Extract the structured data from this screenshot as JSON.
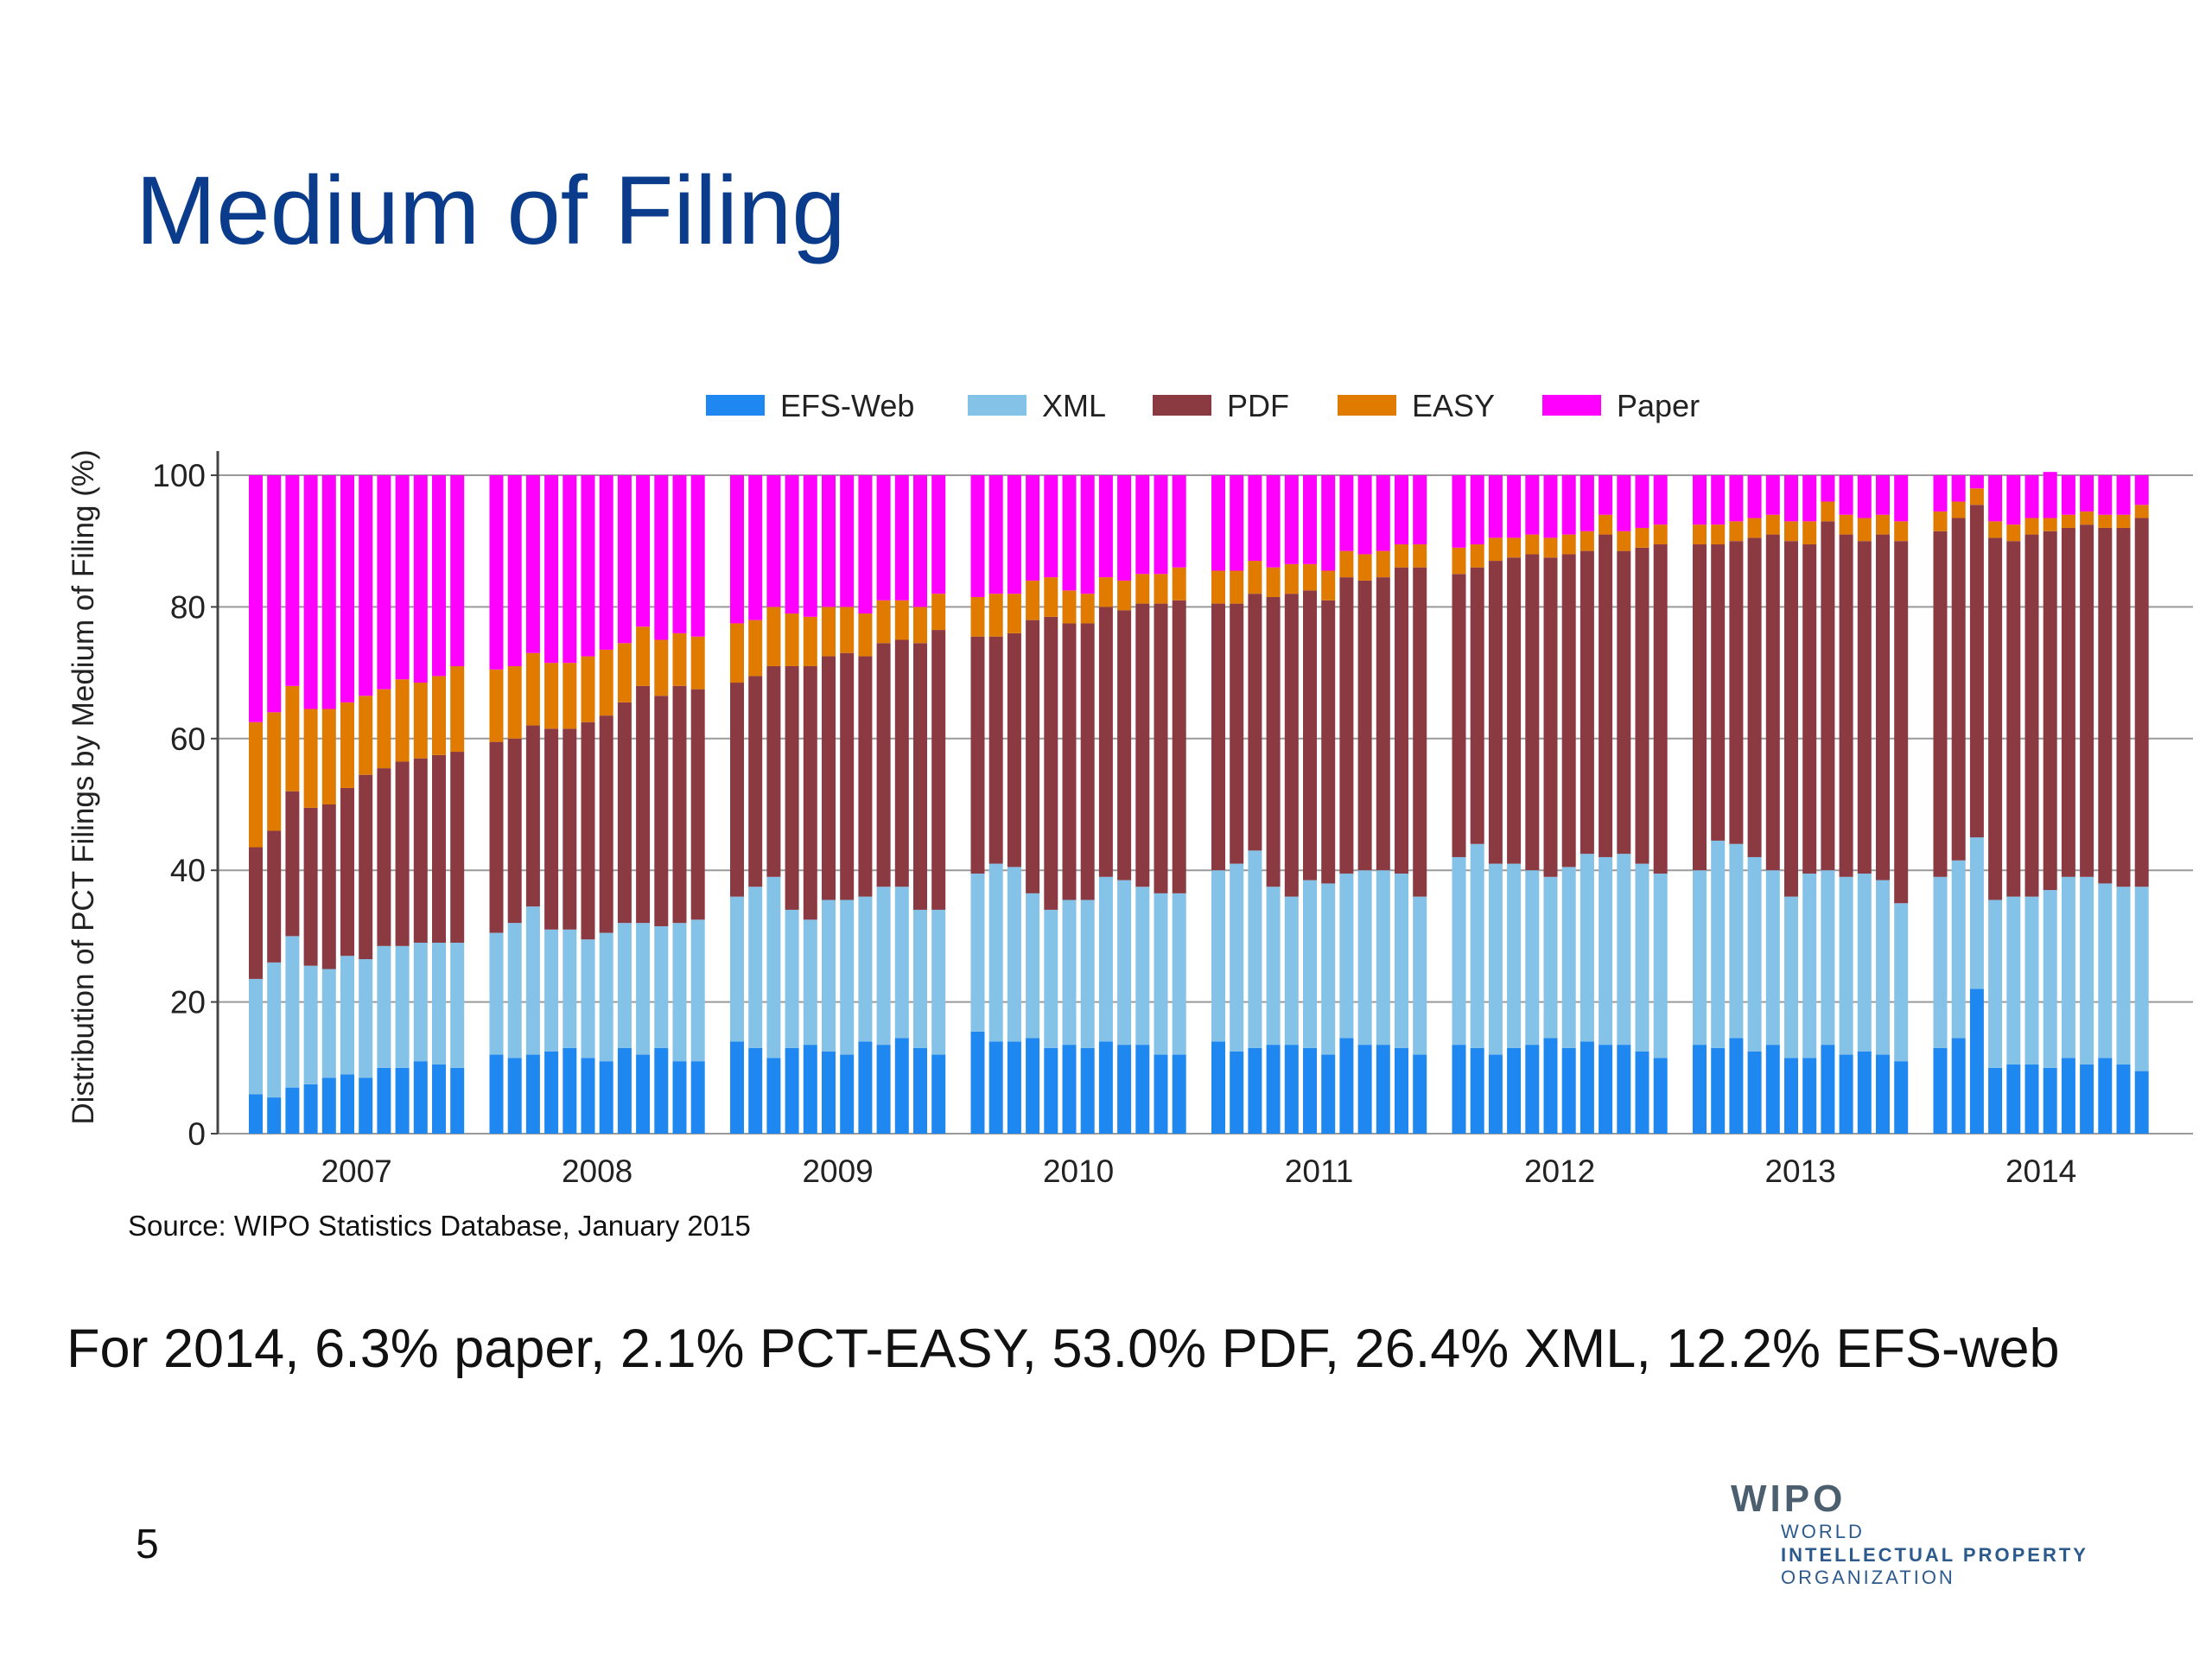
{
  "slide": {
    "title": "Medium of Filing",
    "source": "Source:  WIPO Statistics Database, January 2015",
    "summary": "For 2014, 6.3% paper, 2.1% PCT-EASY, 53.0% PDF, 26.4% XML, 12.2% EFS-web",
    "page_number": "5",
    "logo": {
      "mark": "WIPO",
      "line1": "WORLD",
      "line2": "INTELLECTUAL PROPERTY",
      "line3": "ORGANIZATION"
    }
  },
  "chart_data": {
    "type": "bar",
    "stacked": true,
    "ylabel": "Distribution of PCT Filings by Medium of Filing (%)",
    "xlabel": "",
    "ylim": [
      0,
      100
    ],
    "yticks": [
      0,
      20,
      40,
      60,
      80,
      100
    ],
    "grid": true,
    "legend_position": "top",
    "groups": [
      "2007",
      "2008",
      "2009",
      "2010",
      "2011",
      "2012",
      "2013",
      "2014"
    ],
    "bars_per_group": 12,
    "x_unit": "month",
    "series": [
      {
        "name": "EFS-Web",
        "color": "#1e88f0",
        "values": [
          6,
          5.5,
          7,
          7.5,
          8.5,
          9,
          8.5,
          10,
          10,
          11,
          10.5,
          10,
          12,
          11.5,
          12,
          12.5,
          13,
          11.5,
          11,
          13,
          12,
          13,
          11,
          11,
          14,
          13,
          11.5,
          13,
          13.5,
          12.5,
          12,
          14,
          13.5,
          14.5,
          13,
          12,
          15.5,
          14,
          14,
          14.5,
          13,
          13.5,
          13,
          14,
          13.5,
          13.5,
          12,
          12,
          14,
          12.5,
          13,
          13.5,
          13.5,
          13,
          12,
          14.5,
          13.5,
          13.5,
          13,
          12,
          13.5,
          13,
          12,
          13,
          13.5,
          14.5,
          13,
          14,
          13.5,
          13.5,
          12.5,
          11.5,
          13.5,
          13,
          14.5,
          12.5,
          13.5,
          11.5,
          11.5,
          13.5,
          12,
          12.5,
          12,
          11,
          13,
          14.5,
          22,
          10,
          10.5,
          10.5,
          10,
          11.5,
          10.5,
          11.5,
          10.5,
          9.5
        ]
      },
      {
        "name": "XML",
        "color": "#85c2e8",
        "values": [
          17.5,
          20.5,
          23,
          18,
          16.5,
          18,
          18,
          18.5,
          18.5,
          18,
          18.5,
          19,
          18.5,
          20.5,
          22.5,
          18.5,
          18,
          18,
          19.5,
          19,
          20,
          18.5,
          21,
          21.5,
          22,
          24.5,
          27.5,
          21,
          19,
          23,
          23.5,
          22,
          24,
          23,
          21,
          22,
          24,
          27,
          26.5,
          22,
          21,
          22,
          22.5,
          25,
          25,
          24,
          24.5,
          24.5,
          26,
          28.5,
          30,
          24,
          22.5,
          25.5,
          26,
          25,
          26.5,
          26.5,
          26.5,
          24,
          28.5,
          31,
          29,
          28,
          26.5,
          24.5,
          27.5,
          28.5,
          28.5,
          29,
          28.5,
          28,
          26.5,
          31.5,
          29.5,
          29.5,
          26.5,
          24.5,
          28,
          26.5,
          27,
          27,
          26.5,
          24,
          26,
          27,
          23,
          25.5,
          25.5,
          25.5,
          27,
          27.5,
          28.5,
          26.5,
          27,
          28
        ]
      },
      {
        "name": "PDF",
        "color": "#8b3a42",
        "values": [
          20,
          20,
          22,
          24,
          25,
          25.5,
          28,
          27,
          28,
          28,
          28.5,
          29,
          29,
          28,
          27.5,
          30.5,
          30.5,
          33,
          33,
          33.5,
          36,
          35,
          36,
          35,
          32.5,
          32,
          32,
          37,
          38.5,
          37,
          37.5,
          36.5,
          37,
          37.5,
          40.5,
          42.5,
          36,
          34.5,
          35.5,
          41.5,
          44.5,
          42,
          42,
          41,
          41,
          43,
          44,
          44.5,
          40.5,
          39.5,
          39,
          44,
          46,
          44,
          43,
          45,
          44,
          44.5,
          46.5,
          50,
          43,
          42,
          46,
          46.5,
          48,
          48.5,
          47.5,
          46,
          49,
          46,
          48,
          50,
          49.5,
          45,
          46,
          48.5,
          51,
          54,
          50,
          53,
          52,
          50.5,
          52.5,
          55,
          52.5,
          52,
          50.5,
          55,
          54,
          55,
          54.5,
          53,
          53.5,
          54,
          54.5,
          56
        ]
      },
      {
        "name": "EASY",
        "color": "#e07b00",
        "values": [
          19,
          18,
          16,
          15,
          14.5,
          13,
          12,
          12,
          12.5,
          11.5,
          12,
          13,
          11,
          11,
          11,
          10,
          10,
          10,
          10,
          9,
          9,
          8.5,
          8,
          8,
          9,
          8.5,
          9,
          8,
          7.5,
          7.5,
          7,
          6.5,
          6.5,
          6,
          5.5,
          5.5,
          6,
          6.5,
          6,
          6,
          6,
          5,
          4.5,
          4.5,
          4.5,
          4.5,
          4.5,
          5,
          5,
          5,
          5,
          4.5,
          4.5,
          4,
          4.5,
          4,
          4,
          4,
          3.5,
          3.5,
          4,
          3.5,
          3.5,
          3,
          3,
          3,
          3,
          3,
          3,
          3,
          3,
          3,
          3,
          3,
          3,
          3,
          3,
          3,
          3.5,
          3,
          3,
          3.5,
          3,
          3,
          3,
          2.5,
          2.5,
          2.5,
          2.5,
          2.5,
          2,
          2,
          2,
          2,
          2,
          2
        ]
      },
      {
        "name": "Paper",
        "color": "#ff00ff",
        "values": [
          37.5,
          36,
          32,
          35.5,
          35.5,
          34.5,
          33.5,
          32.5,
          31,
          31.5,
          30.5,
          29,
          29.5,
          29,
          27,
          28.5,
          28.5,
          27.5,
          26.5,
          25.5,
          23,
          25,
          24,
          24.5,
          22.5,
          22,
          20,
          21,
          21.5,
          20,
          20,
          21,
          19,
          19,
          20,
          18,
          18.5,
          18,
          18,
          16,
          15.5,
          17.5,
          18,
          15.5,
          16,
          15,
          15,
          14,
          14.5,
          14.5,
          13,
          14,
          13.5,
          13.5,
          14.5,
          11.5,
          12,
          11.5,
          10.5,
          10.5,
          11,
          10.5,
          9.5,
          9.5,
          9,
          9.5,
          9,
          8.5,
          6,
          8.5,
          8,
          7.5,
          7.5,
          7.5,
          7,
          6.5,
          6,
          7,
          7,
          4,
          6,
          6.5,
          6,
          7,
          5.5,
          4,
          2,
          7,
          7.5,
          6.5,
          7,
          6,
          5.5,
          6,
          6,
          4.5
        ]
      }
    ]
  }
}
